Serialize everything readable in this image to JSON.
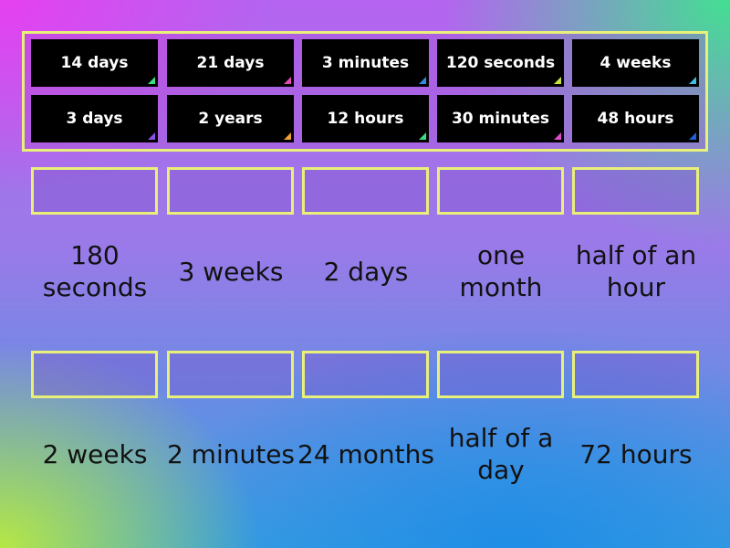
{
  "tiles": [
    {
      "text": "14 days",
      "corner": "#3ddc84"
    },
    {
      "text": "21 days",
      "corner": "#e04cb0"
    },
    {
      "text": "3 minutes",
      "corner": "#2f8de0"
    },
    {
      "text": "120 seconds",
      "corner": "#c8e040"
    },
    {
      "text": "4 weeks",
      "corner": "#40c0e0"
    },
    {
      "text": "3 days",
      "corner": "#8a50e8"
    },
    {
      "text": "2 years",
      "corner": "#f0a030"
    },
    {
      "text": "12 hours",
      "corner": "#3ddc84"
    },
    {
      "text": "30 minutes",
      "corner": "#e04cc8"
    },
    {
      "text": "48 hours",
      "corner": "#2060e0"
    }
  ],
  "targets": [
    "180 seconds",
    "3 weeks",
    "2 days",
    "one month",
    "half of an hour",
    "2 weeks",
    "2 minutes",
    "24 months",
    "half of a day",
    "72 hours"
  ]
}
